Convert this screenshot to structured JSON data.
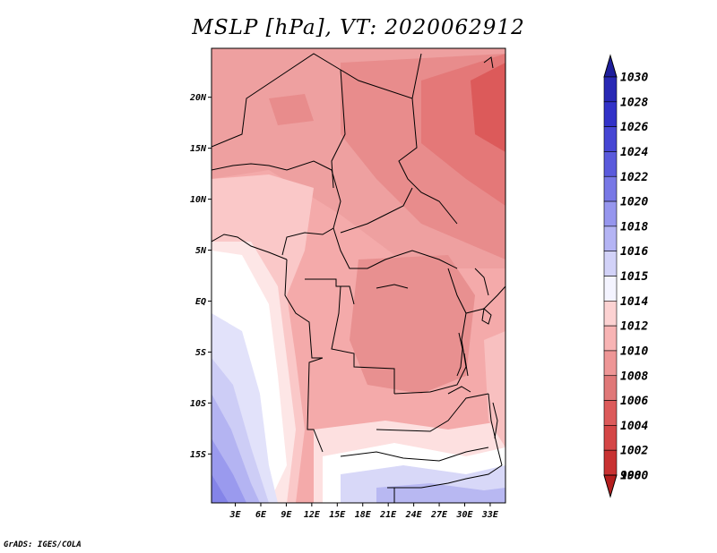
{
  "title": "MSLP [hPa], VT: 2020062912",
  "credit": "GrADS: IGES/COLA",
  "map": {
    "lat_labels": [
      {
        "lat": 20,
        "text": "20N"
      },
      {
        "lat": 15,
        "text": "15N"
      },
      {
        "lat": 10,
        "text": "10N"
      },
      {
        "lat": 5,
        "text": "5N"
      },
      {
        "lat": 0,
        "text": "EQ"
      },
      {
        "lat": -5,
        "text": "5S"
      },
      {
        "lat": -10,
        "text": "10S"
      },
      {
        "lat": -15,
        "text": "15S"
      }
    ],
    "lon_labels": [
      {
        "lon": 3,
        "text": "3E"
      },
      {
        "lon": 6,
        "text": "6E"
      },
      {
        "lon": 9,
        "text": "9E"
      },
      {
        "lon": 12,
        "text": "12E"
      },
      {
        "lon": 15,
        "text": "15E"
      },
      {
        "lon": 18,
        "text": "18E"
      },
      {
        "lon": 21,
        "text": "21E"
      },
      {
        "lon": 24,
        "text": "24E"
      },
      {
        "lon": 27,
        "text": "27E"
      },
      {
        "lon": 30,
        "text": "30E"
      },
      {
        "lon": 33,
        "text": "33E"
      }
    ],
    "lon_range": [
      0.2,
      34.8
    ],
    "lat_range": [
      -19.8,
      24.8
    ]
  },
  "colorbar": {
    "levels": [
      "1030",
      "1028",
      "1026",
      "1024",
      "1022",
      "1020",
      "1018",
      "1016",
      "1015",
      "1014",
      "1012",
      "1010",
      "1008",
      "1006",
      "1004",
      "1002",
      "1000",
      "998"
    ],
    "colors": [
      "#1e1e9c",
      "#2828b4",
      "#3232c8",
      "#4646d4",
      "#5a5adc",
      "#7878e6",
      "#9696ee",
      "#b4b4f4",
      "#d2d2f8",
      "#f4f4ff",
      "#fcd2d2",
      "#f8b4b4",
      "#ee9696",
      "#e07878",
      "#dc5a5a",
      "#d44646",
      "#c83232",
      "#b41e1e"
    ]
  }
}
